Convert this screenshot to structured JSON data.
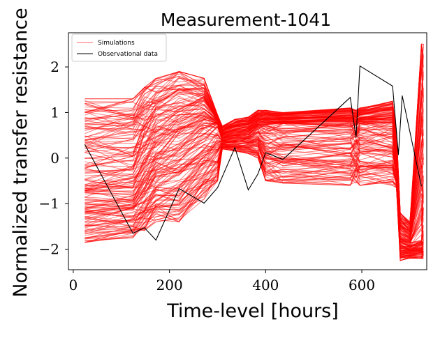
{
  "chart_data": {
    "type": "line",
    "title": "Measurement-1041",
    "xlabel": "Time-level [hours]",
    "ylabel": "Normalized transfer resistance",
    "xlim": [
      -10,
      735
    ],
    "ylim": [
      -2.45,
      2.75
    ],
    "x_ticks": [
      0,
      200,
      400,
      600
    ],
    "y_ticks": [
      -2,
      -1,
      0,
      1,
      2
    ],
    "x_tick_labels": [
      "0",
      "200",
      "400",
      "600"
    ],
    "y_tick_labels": [
      "−2",
      "−1",
      "0",
      "1",
      "2"
    ],
    "grid": false,
    "legend": {
      "placement": "top-left",
      "entries": [
        {
          "label": "Simulations",
          "color": "#ff0000"
        },
        {
          "label": "Observational data",
          "color": "#000000"
        }
      ]
    },
    "series": [
      {
        "name": "Observational data",
        "color": "#000000",
        "x": [
          24,
          124,
          148,
          172,
          220,
          272,
          300,
          336,
          364,
          384,
          400,
          436,
          576,
          588,
          596,
          664,
          676,
          684,
          724
        ],
        "y": [
          0.3,
          -1.65,
          -1.53,
          -1.8,
          -0.67,
          -0.99,
          -0.65,
          0.23,
          -0.7,
          -0.35,
          0.12,
          -0.03,
          1.33,
          0.45,
          2.02,
          1.58,
          0.07,
          1.37,
          -0.62
        ]
      },
      {
        "name": "Simulations",
        "color": "#ff0000",
        "ensemble_size": 180,
        "x": [
          24,
          124,
          148,
          172,
          220,
          272,
          300,
          310,
          336,
          364,
          384,
          400,
          436,
          576,
          588,
          596,
          664,
          672,
          680,
          700,
          724,
          728
        ],
        "upper_envelope": [
          1.3,
          1.3,
          1.55,
          1.75,
          1.9,
          1.75,
          0.95,
          0.7,
          0.85,
          0.9,
          1.05,
          1.05,
          1.0,
          1.1,
          1.05,
          1.1,
          1.25,
          0.6,
          -1.2,
          -1.4,
          2.5,
          2.5
        ],
        "median": [
          -0.6,
          -0.55,
          -0.2,
          0.1,
          0.4,
          0.7,
          0.75,
          0.45,
          0.5,
          0.55,
          0.72,
          0.72,
          0.75,
          0.75,
          0.72,
          0.75,
          0.75,
          0.0,
          -1.8,
          -1.9,
          -1.8,
          -1.8
        ],
        "lower_envelope": [
          -1.85,
          -1.75,
          -1.6,
          -1.4,
          -1.4,
          -0.9,
          -0.5,
          0.2,
          0.15,
          0.1,
          0.0,
          -0.5,
          -0.55,
          -0.6,
          -0.55,
          -0.6,
          -0.6,
          -0.65,
          -2.25,
          -2.2,
          -2.2,
          -2.2
        ]
      }
    ]
  }
}
